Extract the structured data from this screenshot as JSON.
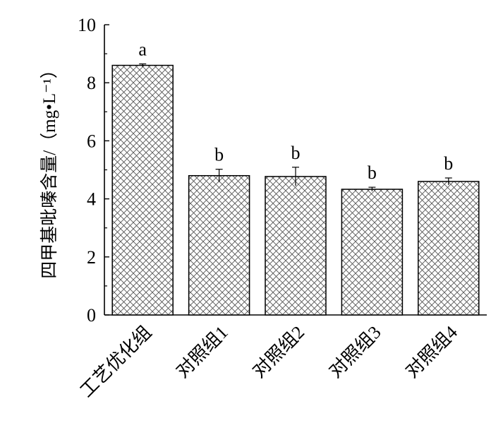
{
  "chart_data": {
    "type": "bar",
    "categories": [
      "工艺优化组",
      "对照组1",
      "对照组2",
      "对照组3",
      "对照组4"
    ],
    "values": [
      8.6,
      4.8,
      4.77,
      4.33,
      4.6
    ],
    "error": [
      0.05,
      0.22,
      0.32,
      0.07,
      0.12
    ],
    "significance": [
      "a",
      "b",
      "b",
      "b",
      "b"
    ],
    "ylabel": "四甲基吡嗪含量/（mg•L⁻¹）",
    "ylim": [
      0,
      10
    ],
    "yticks": [
      "0",
      "2",
      "4",
      "6",
      "8",
      "10"
    ],
    "bar_pattern": "crosshatch",
    "grid": false,
    "legend": "none"
  }
}
